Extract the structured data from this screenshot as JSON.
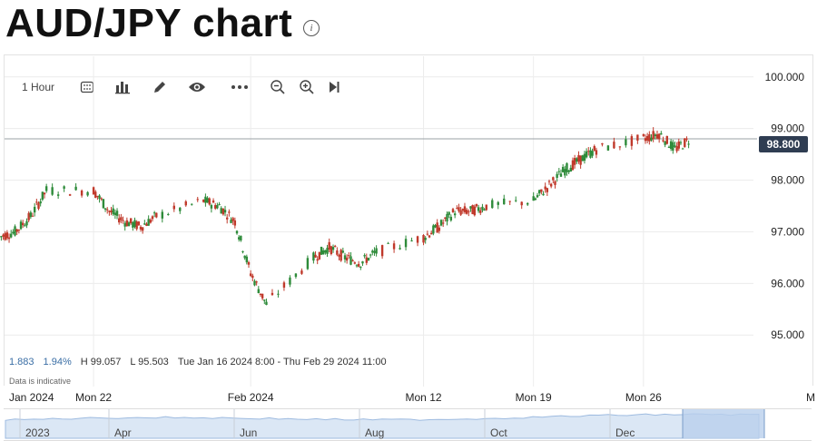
{
  "header": {
    "title": "AUD/JPY chart",
    "info_icon": "info-icon"
  },
  "toolbar": {
    "interval_label": "1 Hour",
    "buttons": [
      "candles-icon",
      "bar-chart-icon",
      "draw-pencil-icon",
      "eye-icon",
      "more-icon",
      "zoom-out-icon",
      "zoom-in-icon",
      "play-forward-icon"
    ]
  },
  "price_tag": "98.800",
  "stats": {
    "change": "1.883",
    "change_pct": "1.94%",
    "high": "H 99.057",
    "low": "L 95.503",
    "range": "Tue Jan 16 2024 8:00 - Thu Feb 29 2024 11:00",
    "note": "Data is indicative"
  },
  "x_axis_labels": [
    "Jan 2024",
    "Mon 22",
    "Feb 2024",
    "Mon 12",
    "Mon 19",
    "Mon 26",
    "M"
  ],
  "navigator_labels": [
    "2023",
    "Apr",
    "Jun",
    "Aug",
    "Oct",
    "Dec"
  ],
  "colors": {
    "up": "#2e8b3a",
    "down": "#c0392b",
    "price_tag": "#2f3d52",
    "navigator_fill": "#dbe7f5",
    "navigator_selection": "#b9d0ec"
  },
  "chart_data": {
    "type": "line",
    "subtype": "candlestick",
    "title": "AUD/JPY chart",
    "interval": "1 Hour",
    "yticks": [
      "100.000",
      "99.000",
      "98.000",
      "97.000",
      "96.000",
      "95.000"
    ],
    "ylim": [
      94.6,
      100.4
    ],
    "xlim": [
      "2024-01-16T08:00",
      "2024-03-04T00:00"
    ],
    "current_price": 98.8,
    "high": 99.057,
    "low": 95.503,
    "grid": true,
    "series": [
      {
        "x": [
          "2024-01-16",
          "2024-01-17",
          "2024-01-18",
          "2024-01-19",
          "2024-01-22",
          "2024-01-23",
          "2024-01-24",
          "2024-01-25",
          "2024-01-26",
          "2024-01-29",
          "2024-01-30",
          "2024-01-31",
          "2024-02-01",
          "2024-02-02",
          "2024-02-05",
          "2024-02-06",
          "2024-02-07",
          "2024-02-08",
          "2024-02-09",
          "2024-02-12",
          "2024-02-13",
          "2024-02-14",
          "2024-02-15",
          "2024-02-16",
          "2024-02-19",
          "2024-02-20",
          "2024-02-21",
          "2024-02-22",
          "2024-02-23",
          "2024-02-26",
          "2024-02-27",
          "2024-02-28",
          "2024-02-29"
        ],
        "values": [
          96.9,
          97.0,
          97.3,
          97.8,
          97.8,
          97.4,
          97.2,
          97.1,
          97.3,
          97.6,
          97.5,
          97.2,
          96.2,
          95.6,
          96.5,
          96.7,
          96.5,
          96.4,
          96.6,
          96.9,
          97.1,
          97.4,
          97.4,
          97.5,
          97.6,
          97.9,
          98.2,
          98.4,
          98.6,
          98.8,
          98.9,
          98.6,
          98.8
        ]
      }
    ]
  }
}
